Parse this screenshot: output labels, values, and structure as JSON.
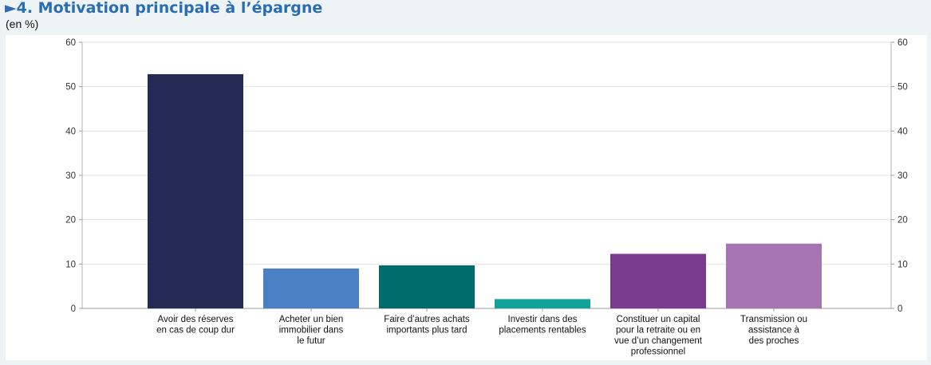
{
  "header": {
    "title": "►4. Motivation principale à l’épargne",
    "subtitle": "(en %)"
  },
  "chart_data": {
    "type": "bar",
    "categories": [
      [
        "Avoir des réserves",
        "en cas de coup dur"
      ],
      [
        "Acheter un bien",
        "immobilier dans",
        "le futur"
      ],
      [
        "Faire d’autres achats",
        "importants plus tard"
      ],
      [
        "Investir dans des",
        "placements rentables"
      ],
      [
        "Constituer un capital",
        "pour la retraite ou en",
        "vue d’un changement",
        "professionnel"
      ],
      [
        "Transmission ou",
        "assistance à",
        "des proches"
      ]
    ],
    "values": [
      52.8,
      9.0,
      9.7,
      2.1,
      12.3,
      14.6
    ],
    "colors": [
      "#232b55",
      "#4a80c4",
      "#006b6b",
      "#0fa39c",
      "#7a3a8e",
      "#a673b3"
    ],
    "ylim": [
      0,
      60
    ],
    "yticks": [
      0,
      10,
      20,
      30,
      40,
      50,
      60
    ],
    "grid": true,
    "dual_y_axis": true
  }
}
